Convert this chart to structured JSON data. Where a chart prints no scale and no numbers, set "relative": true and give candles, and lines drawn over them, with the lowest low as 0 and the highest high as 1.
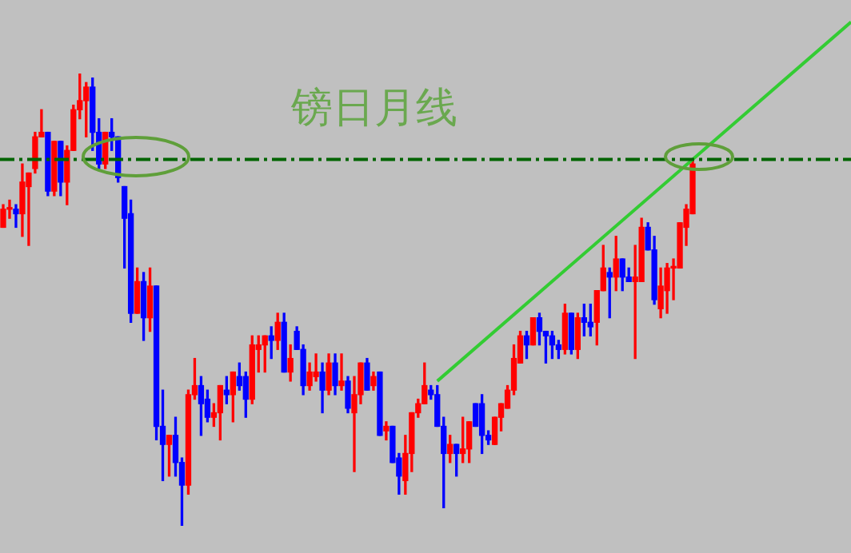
{
  "chart_data": {
    "type": "candlestick",
    "title": "镑日月线",
    "relative": true,
    "tick_labels": false,
    "grid": false,
    "legend": false,
    "categories": [
      null,
      null,
      null,
      null,
      null,
      null,
      null,
      null,
      null,
      null,
      null,
      null,
      null,
      null,
      null,
      null,
      null,
      null,
      null,
      null,
      null,
      null,
      null,
      null,
      null,
      null,
      null,
      null,
      null,
      null,
      null,
      null,
      null,
      null,
      null,
      null,
      null,
      null,
      null,
      null,
      null,
      null,
      null,
      null,
      null,
      null,
      null,
      null,
      null,
      null,
      null,
      null,
      null,
      null,
      null,
      null,
      null,
      null,
      null,
      null,
      null,
      null,
      null,
      null,
      null,
      null,
      null,
      null,
      null,
      null,
      null,
      null,
      null,
      null,
      null,
      null,
      null,
      null,
      null,
      null,
      null,
      null,
      null,
      null,
      null,
      null,
      null,
      null,
      null,
      null,
      null,
      null,
      null,
      null,
      null,
      null,
      null,
      null,
      null,
      null,
      null,
      null,
      null,
      null,
      null,
      null,
      null,
      null,
      null
    ],
    "ohlc": [
      [
        0.66,
        0.71,
        0.66,
        0.7
      ],
      [
        0.7,
        0.72,
        0.68,
        0.7
      ],
      [
        0.7,
        0.71,
        0.66,
        0.69
      ],
      [
        0.69,
        0.8,
        0.64,
        0.76
      ],
      [
        0.75,
        0.78,
        0.62,
        0.78
      ],
      [
        0.79,
        0.87,
        0.78,
        0.86
      ],
      [
        0.86,
        0.92,
        0.86,
        0.87
      ],
      [
        0.87,
        0.87,
        0.73,
        0.74
      ],
      [
        0.74,
        0.85,
        0.73,
        0.85
      ],
      [
        0.85,
        0.85,
        0.73,
        0.76
      ],
      [
        0.76,
        0.84,
        0.71,
        0.83
      ],
      [
        0.83,
        0.93,
        0.83,
        0.92
      ],
      [
        0.92,
        1,
        0.9,
        0.94
      ],
      [
        0.94,
        0.98,
        0.86,
        0.97
      ],
      [
        0.97,
        0.99,
        0.83,
        0.87
      ],
      [
        0.87,
        0.9,
        0.79,
        0.8
      ],
      [
        0.8,
        0.87,
        0.79,
        0.87
      ],
      [
        0.87,
        0.9,
        0.83,
        0.86
      ],
      [
        0.86,
        0.86,
        0.76,
        0.77
      ],
      [
        0.75,
        0.75,
        0.57,
        0.68
      ],
      [
        0.69,
        0.72,
        0.45,
        0.47
      ],
      [
        0.47,
        0.57,
        0.47,
        0.54
      ],
      [
        0.54,
        0.56,
        0.41,
        0.46
      ],
      [
        0.46,
        0.57,
        0.43,
        0.53
      ],
      [
        0.53,
        0.53,
        0.19,
        0.22
      ],
      [
        0.22,
        0.3,
        0.1,
        0.18
      ],
      [
        0.18,
        0.2,
        0.11,
        0.2
      ],
      [
        0.2,
        0.24,
        0.11,
        0.14
      ],
      [
        0.14,
        0.15,
        0,
        0.09
      ],
      [
        0.09,
        0.3,
        0.07,
        0.29
      ],
      [
        0.29,
        0.37,
        0.28,
        0.31
      ],
      [
        0.31,
        0.33,
        0.2,
        0.27
      ],
      [
        0.28,
        0.3,
        0.23,
        0.24
      ],
      [
        0.24,
        0.27,
        0.22,
        0.25
      ],
      [
        0.25,
        0.31,
        0.19,
        0.31
      ],
      [
        0.3,
        0.33,
        0.27,
        0.29
      ],
      [
        0.29,
        0.34,
        0.23,
        0.34
      ],
      [
        0.33,
        0.36,
        0.3,
        0.31
      ],
      [
        0.33,
        0.34,
        0.24,
        0.28
      ],
      [
        0.28,
        0.42,
        0.27,
        0.4
      ],
      [
        0.39,
        0.42,
        0.34,
        0.4
      ],
      [
        0.4,
        0.42,
        0.34,
        0.42
      ],
      [
        0.42,
        0.44,
        0.37,
        0.41
      ],
      [
        0.41,
        0.47,
        0.39,
        0.45
      ],
      [
        0.45,
        0.47,
        0.34,
        0.34
      ],
      [
        0.34,
        0.4,
        0.32,
        0.37
      ],
      [
        0.43,
        0.44,
        0.39,
        0.39
      ],
      [
        0.39,
        0.4,
        0.29,
        0.31
      ],
      [
        0.31,
        0.36,
        0.3,
        0.34
      ],
      [
        0.33,
        0.38,
        0.32,
        0.34
      ],
      [
        0.34,
        0.36,
        0.25,
        0.3
      ],
      [
        0.3,
        0.38,
        0.29,
        0.36
      ],
      [
        0.36,
        0.38,
        0.29,
        0.31
      ],
      [
        0.31,
        0.38,
        0.3,
        0.32
      ],
      [
        0.32,
        0.33,
        0.25,
        0.26
      ],
      [
        0.25,
        0.33,
        0.12,
        0.29
      ],
      [
        0.29,
        0.36,
        0.27,
        0.36
      ],
      [
        0.36,
        0.37,
        0.3,
        0.3
      ],
      [
        0.31,
        0.34,
        0.3,
        0.33
      ],
      [
        0.34,
        0.34,
        0.2,
        0.2
      ],
      [
        0.21,
        0.23,
        0.19,
        0.22
      ],
      [
        0.22,
        0.22,
        0.14,
        0.14
      ],
      [
        0.15,
        0.16,
        0.07,
        0.11
      ],
      [
        0.1,
        0.2,
        0.07,
        0.16
      ],
      [
        0.16,
        0.25,
        0.12,
        0.25
      ],
      [
        0.25,
        0.28,
        0.24,
        0.27
      ],
      [
        0.27,
        0.36,
        0.27,
        0.31
      ],
      [
        0.3,
        0.31,
        0.28,
        0.29
      ],
      [
        0.29,
        0.31,
        0.22,
        0.22
      ],
      [
        0.22,
        0.24,
        0.04,
        0.16
      ],
      [
        0.16,
        0.2,
        0.14,
        0.18
      ],
      [
        0.18,
        0.18,
        0.11,
        0.16
      ],
      [
        0.16,
        0.24,
        0.14,
        0.17
      ],
      [
        0.17,
        0.23,
        0.14,
        0.23
      ],
      [
        0.27,
        0.27,
        0.22,
        0.22
      ],
      [
        0.27,
        0.29,
        0.16,
        0.2
      ],
      [
        0.2,
        0.21,
        0.18,
        0.19
      ],
      [
        0.18,
        0.24,
        0.18,
        0.24
      ],
      [
        0.24,
        0.27,
        0.21,
        0.27
      ],
      [
        0.26,
        0.31,
        0.26,
        0.3
      ],
      [
        0.3,
        0.4,
        0.29,
        0.37
      ],
      [
        0.36,
        0.43,
        0.36,
        0.42
      ],
      [
        0.42,
        0.43,
        0.37,
        0.4
      ],
      [
        0.4,
        0.46,
        0.4,
        0.46
      ],
      [
        0.46,
        0.47,
        0.4,
        0.43
      ],
      [
        0.43,
        0.43,
        0.36,
        0.42
      ],
      [
        0.42,
        0.43,
        0.37,
        0.4
      ],
      [
        0.4,
        0.41,
        0.37,
        0.39
      ],
      [
        0.39,
        0.49,
        0.38,
        0.47
      ],
      [
        0.47,
        0.47,
        0.38,
        0.39
      ],
      [
        0.39,
        0.47,
        0.37,
        0.46
      ],
      [
        0.46,
        0.49,
        0.42,
        0.45
      ],
      [
        0.45,
        0.49,
        0.42,
        0.44
      ],
      [
        0.45,
        0.52,
        0.4,
        0.52
      ],
      [
        0.52,
        0.62,
        0.52,
        0.57
      ],
      [
        0.56,
        0.57,
        0.46,
        0.55
      ],
      [
        0.55,
        0.64,
        0.52,
        0.59
      ],
      [
        0.59,
        0.59,
        0.52,
        0.55
      ],
      [
        0.55,
        0.57,
        0.54,
        0.54
      ],
      [
        0.54,
        0.62,
        0.37,
        0.55
      ],
      [
        0.54,
        0.68,
        0.54,
        0.66
      ],
      [
        0.66,
        0.67,
        0.61,
        0.61
      ],
      [
        0.61,
        0.64,
        0.49,
        0.5
      ],
      [
        0.48,
        0.57,
        0.46,
        0.53
      ],
      [
        0.52,
        0.58,
        0.47,
        0.57
      ],
      [
        0.57,
        0.59,
        0.5,
        0.57
      ],
      [
        0.57,
        0.67,
        0.57,
        0.67
      ],
      [
        0.66,
        0.71,
        0.62,
        0.7
      ],
      [
        0.69,
        0.81,
        0.69,
        0.8
      ]
    ],
    "colors": [
      "#ff0000",
      "#ff0000",
      "#0000ff",
      "#ff0000",
      "#ff0000",
      "#ff0000",
      "#ff0000",
      "#0000ff",
      "#ff0000",
      "#0000ff",
      "#ff0000",
      "#ff0000",
      "#ff0000",
      "#ff0000",
      "#0000ff",
      "#0000ff",
      "#ff0000",
      "#0000ff",
      "#0000ff",
      "#0000ff",
      "#0000ff",
      "#ff0000",
      "#0000ff",
      "#ff0000",
      "#0000ff",
      "#0000ff",
      "#ff0000",
      "#0000ff",
      "#0000ff",
      "#ff0000",
      "#ff0000",
      "#0000ff",
      "#0000ff",
      "#ff0000",
      "#ff0000",
      "#0000ff",
      "#ff0000",
      "#0000ff",
      "#0000ff",
      "#ff0000",
      "#ff0000",
      "#ff0000",
      "#0000ff",
      "#ff0000",
      "#0000ff",
      "#ff0000",
      "#0000ff",
      "#0000ff",
      "#ff0000",
      "#ff0000",
      "#0000ff",
      "#ff0000",
      "#0000ff",
      "#ff0000",
      "#0000ff",
      "#ff0000",
      "#ff0000",
      "#0000ff",
      "#ff0000",
      "#0000ff",
      "#ff0000",
      "#0000ff",
      "#0000ff",
      "#ff0000",
      "#ff0000",
      "#ff0000",
      "#ff0000",
      "#0000ff",
      "#0000ff",
      "#0000ff",
      "#ff0000",
      "#0000ff",
      "#ff0000",
      "#ff0000",
      "#0000ff",
      "#0000ff",
      "#0000ff",
      "#ff0000",
      "#ff0000",
      "#ff0000",
      "#ff0000",
      "#ff0000",
      "#0000ff",
      "#ff0000",
      "#0000ff",
      "#0000ff",
      "#0000ff",
      "#0000ff",
      "#ff0000",
      "#0000ff",
      "#ff0000",
      "#0000ff",
      "#0000ff",
      "#ff0000",
      "#ff0000",
      "#0000ff",
      "#ff0000",
      "#0000ff",
      "#0000ff",
      "#ff0000",
      "#ff0000",
      "#0000ff",
      "#0000ff",
      "#ff0000",
      "#ff0000",
      "#ff0000",
      "#ff0000",
      "#ff0000",
      "#ff0000"
    ],
    "series": [
      {
        "type": "line",
        "values": [
          null,
          null,
          null,
          null,
          null,
          null,
          null,
          null,
          null,
          null,
          null,
          null,
          null,
          null,
          null,
          null,
          null,
          null,
          null,
          null,
          null,
          null,
          null,
          null,
          null,
          null,
          null,
          null,
          null,
          null,
          null,
          null,
          null,
          null,
          null,
          null,
          null,
          null,
          null,
          null,
          null,
          null,
          null,
          null,
          null,
          null,
          null,
          null,
          null,
          null,
          null,
          null,
          null,
          null,
          null,
          null,
          null,
          null,
          null,
          null,
          null,
          null,
          null,
          null,
          null,
          null,
          null,
          null,
          0.32,
          null,
          null,
          null,
          null,
          null,
          null,
          null,
          null,
          null,
          null,
          null,
          null,
          null,
          null,
          null,
          null,
          null,
          null,
          null,
          null,
          null,
          null,
          null,
          null,
          null,
          null,
          null,
          null,
          null,
          null,
          null,
          null,
          null,
          null,
          null,
          null,
          null,
          null,
          null,
          0.81
        ],
        "color": "#33cc33",
        "marker": "none"
      }
    ],
    "ref_lines": [
      {
        "axis": "y",
        "value": 0.81,
        "color": "#006400",
        "line_style": "dashed"
      }
    ]
  }
}
